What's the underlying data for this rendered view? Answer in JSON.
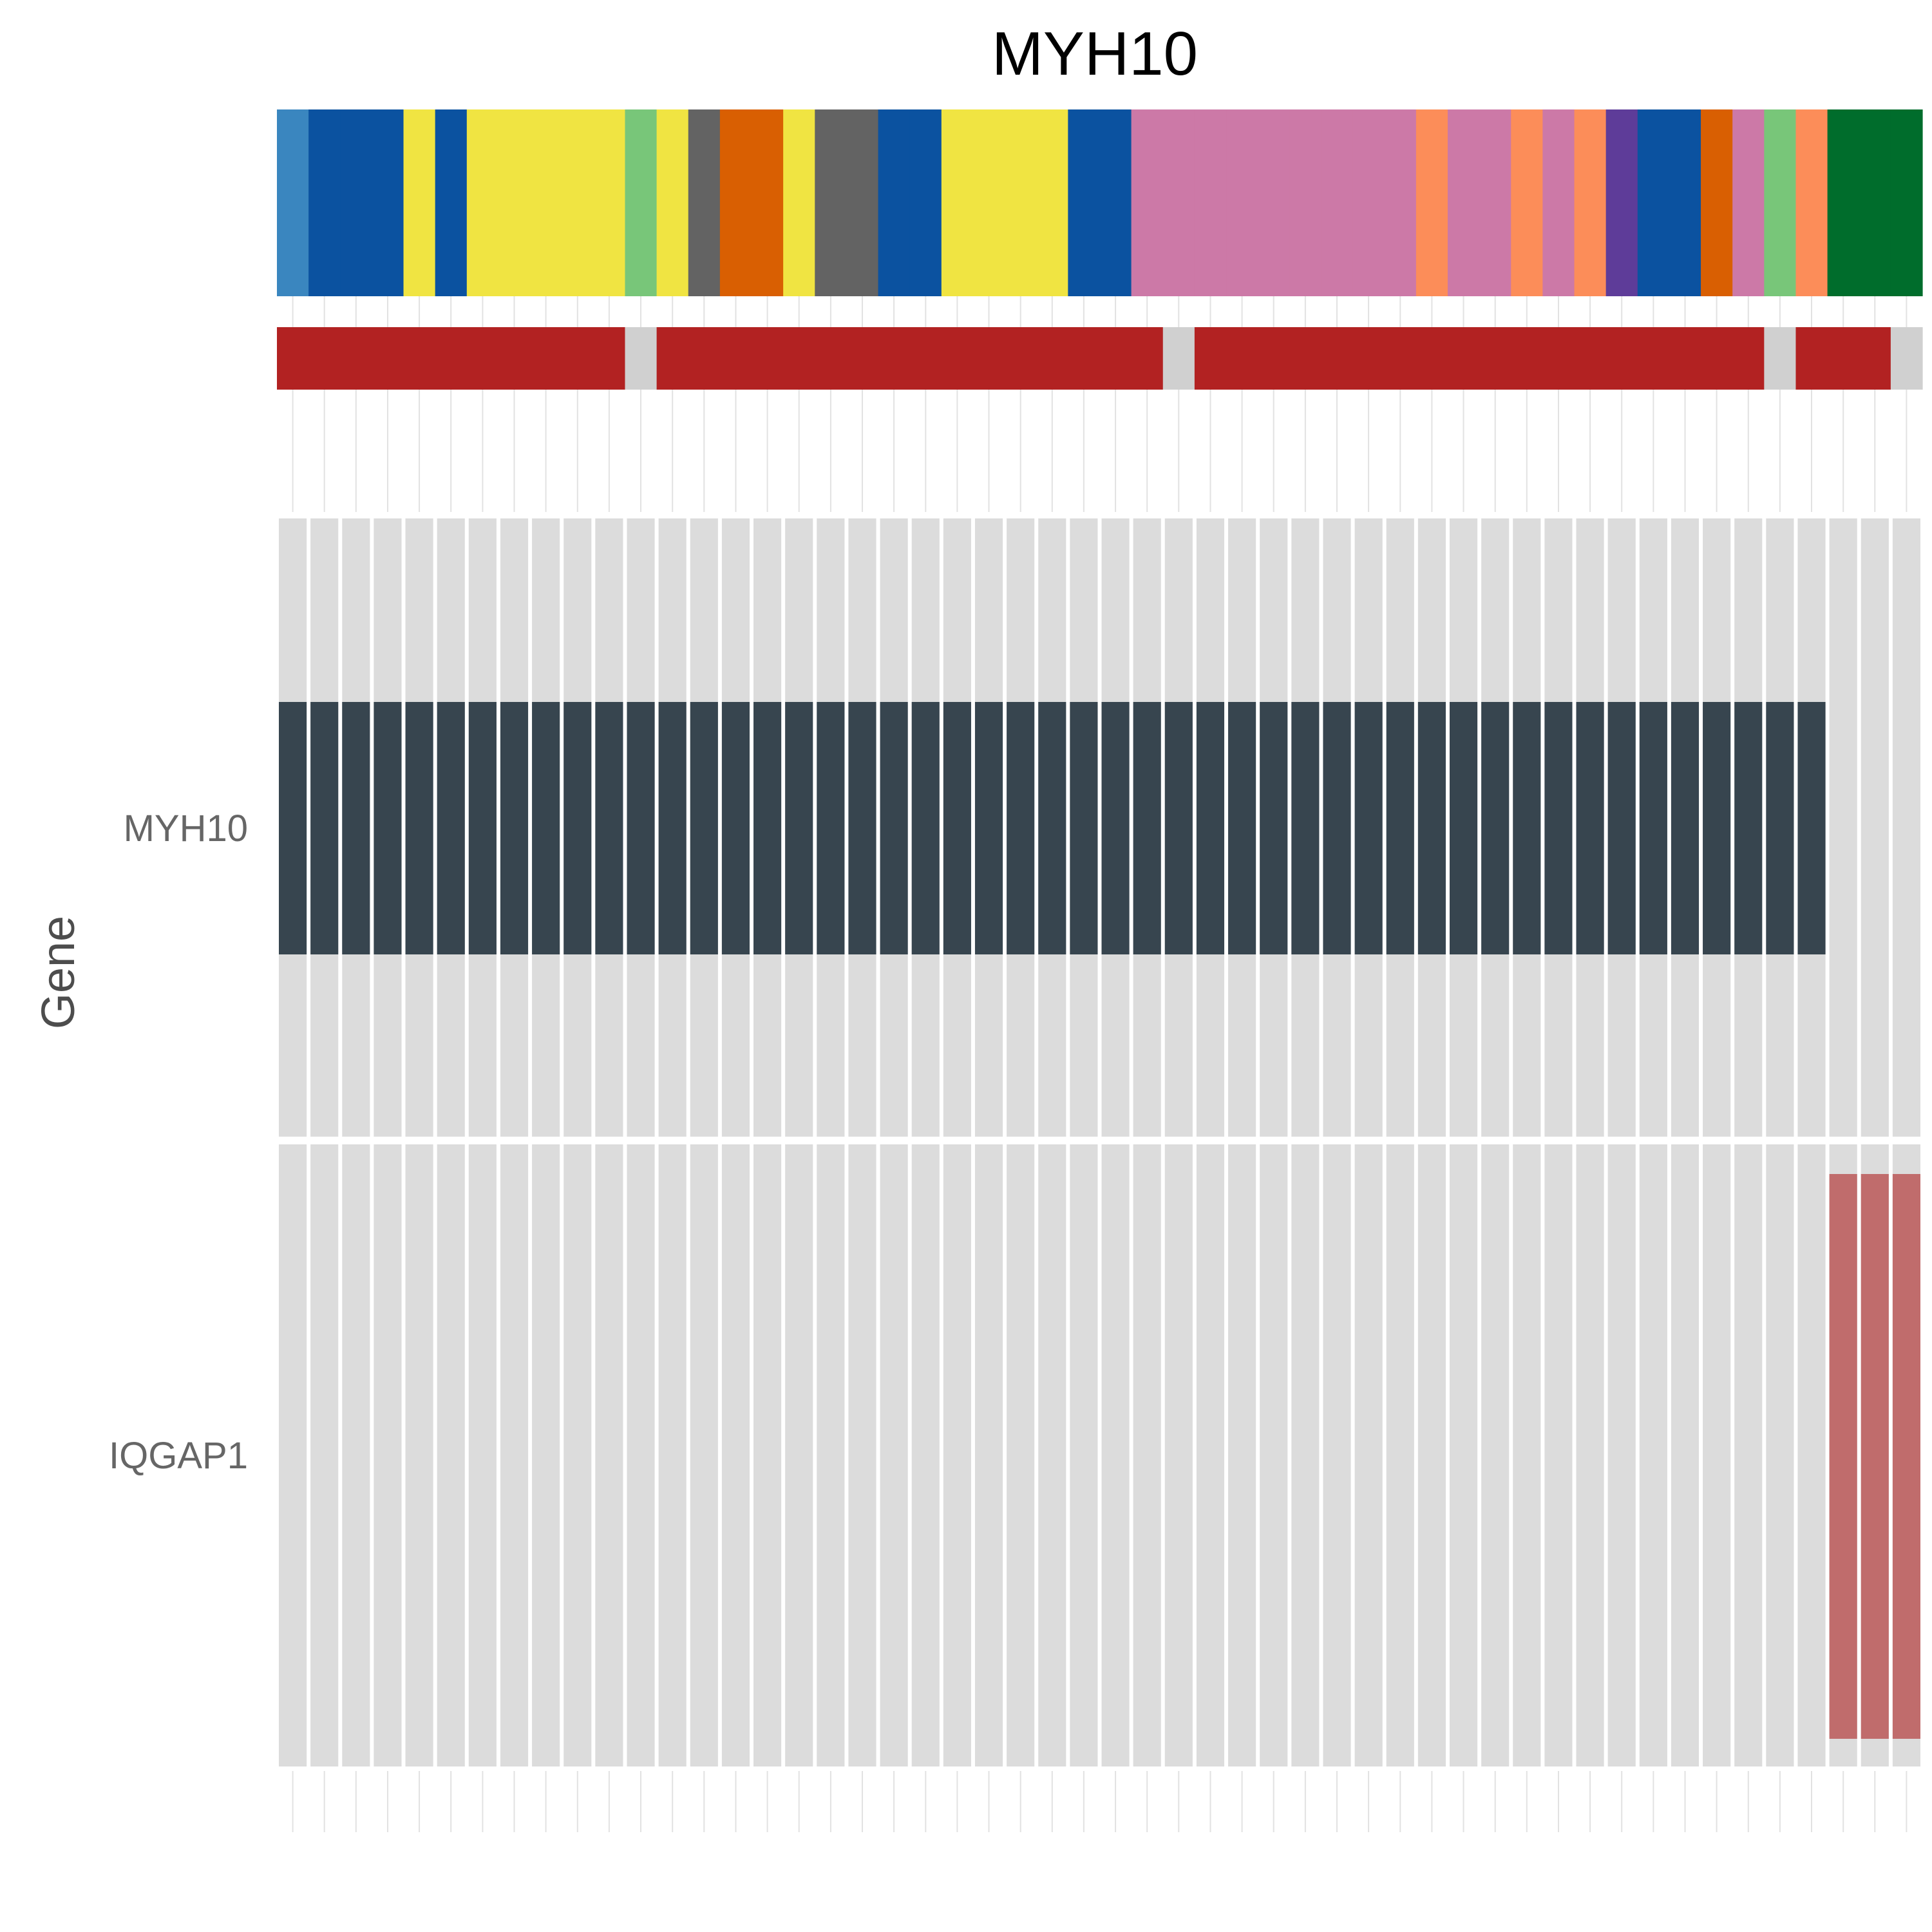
{
  "chart_data": {
    "type": "heatmap",
    "title": "MYH10",
    "ylabel": "Gene",
    "genes": [
      "MYH10",
      "IQGAP1"
    ],
    "n_samples": 52,
    "background_color": "#dcdcdc",
    "top_annotation": {
      "name": "",
      "colors": [
        "#3a86bf",
        "#0b52a0",
        "#0b52a0",
        "#0b52a0",
        "#f0e442",
        "#0b52a0",
        "#f0e442",
        "#f0e442",
        "#f0e442",
        "#f0e442",
        "#f0e442",
        "#78c679",
        "#f0e442",
        "#636363",
        "#d95f02",
        "#d95f02",
        "#f0e442",
        "#636363",
        "#636363",
        "#0b52a0",
        "#0b52a0",
        "#f0e442",
        "#f0e442",
        "#f0e442",
        "#f0e442",
        "#0b52a0",
        "#0b52a0",
        "#cc79a7",
        "#cc79a7",
        "#cc79a7",
        "#cc79a7",
        "#cc79a7",
        "#cc79a7",
        "#cc79a7",
        "#cc79a7",
        "#cc79a7",
        "#fc8d59",
        "#cc79a7",
        "#cc79a7",
        "#fc8d59",
        "#cc79a7",
        "#fc8d59",
        "#5e3c99",
        "#0b52a0",
        "#0b52a0",
        "#d95f02",
        "#cc79a7",
        "#78c679",
        "#fc8d59",
        "#006d2c",
        "#006d2c",
        "#006d2c"
      ]
    },
    "second_annotation": {
      "name": "",
      "colors": [
        "#b22222",
        "#b22222",
        "#b22222",
        "#b22222",
        "#b22222",
        "#b22222",
        "#b22222",
        "#b22222",
        "#b22222",
        "#b22222",
        "#b22222",
        "#d0d0d0",
        "#b22222",
        "#b22222",
        "#b22222",
        "#b22222",
        "#b22222",
        "#b22222",
        "#b22222",
        "#b22222",
        "#b22222",
        "#b22222",
        "#b22222",
        "#b22222",
        "#b22222",
        "#b22222",
        "#b22222",
        "#b22222",
        "#d0d0d0",
        "#b22222",
        "#b22222",
        "#b22222",
        "#b22222",
        "#b22222",
        "#b22222",
        "#b22222",
        "#b22222",
        "#b22222",
        "#b22222",
        "#b22222",
        "#b22222",
        "#b22222",
        "#b22222",
        "#b22222",
        "#b22222",
        "#b22222",
        "#b22222",
        "#d0d0d0",
        "#b22222",
        "#b22222",
        "#b22222",
        "#d0d0d0"
      ]
    },
    "alterations": [
      {
        "gene": "MYH10",
        "color": "#37454f",
        "altered": [
          1,
          1,
          1,
          1,
          1,
          1,
          1,
          1,
          1,
          1,
          1,
          1,
          1,
          1,
          1,
          1,
          1,
          1,
          1,
          1,
          1,
          1,
          1,
          1,
          1,
          1,
          1,
          1,
          1,
          1,
          1,
          1,
          1,
          1,
          1,
          1,
          1,
          1,
          1,
          1,
          1,
          1,
          1,
          1,
          1,
          1,
          1,
          1,
          1,
          0,
          0,
          0
        ]
      },
      {
        "gene": "IQGAP1",
        "color": "#c06c6c",
        "altered": [
          0,
          0,
          0,
          0,
          0,
          0,
          0,
          0,
          0,
          0,
          0,
          0,
          0,
          0,
          0,
          0,
          0,
          0,
          0,
          0,
          0,
          0,
          0,
          0,
          0,
          0,
          0,
          0,
          0,
          0,
          0,
          0,
          0,
          0,
          0,
          0,
          0,
          0,
          0,
          0,
          0,
          0,
          0,
          0,
          0,
          0,
          0,
          0,
          0,
          1,
          1,
          1
        ]
      }
    ]
  }
}
